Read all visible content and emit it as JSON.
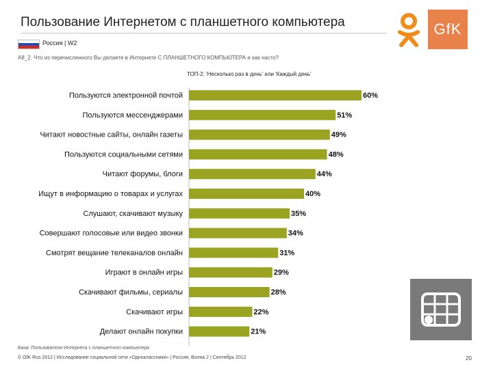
{
  "header": {
    "title": "Пользование Интернетом с планшетного компьютера",
    "country": "Россия | W2",
    "question": "A8_2. Что из перечисленного Вы делаете в Интернете С ПЛАНШЕТНОГО КОМПЬЮТЕРА и как часто?",
    "logo_text": "GfK"
  },
  "chart_data": {
    "type": "bar",
    "orientation": "horizontal",
    "title": "ТОП-2: 'Несколько раз в день' или 'Каждый день'",
    "categories": [
      "Пользуются электронной почтой",
      "Пользуются мессенджерами",
      "Читают новостные сайты, онлайн газеты",
      "Пользуются социальными сетями",
      "Читают форумы, блоги",
      "Ищут в информацию о товарах и услугах",
      "Слушают, скачивают музыку",
      "Совершают голосовые или видео звонки",
      "Смотрят вещание телеканалов онлайн",
      "Играют в онлайн игры",
      "Скачивают фильмы, сериалы",
      "Скачивают игры",
      "Делают онлайн покупки"
    ],
    "values": [
      60,
      51,
      49,
      48,
      44,
      40,
      35,
      34,
      31,
      29,
      28,
      22,
      21
    ],
    "value_labels": [
      "60%",
      "51%",
      "49%",
      "48%",
      "44%",
      "40%",
      "35%",
      "34%",
      "31%",
      "29%",
      "28%",
      "22%",
      "21%"
    ],
    "xlim": [
      0,
      60
    ],
    "bar_color": "#9aa421"
  },
  "footer": {
    "base": "База: Пользователи Интернета с планшетного компьютера",
    "copyright": "© GfK Rus 2012 | Исследование социальной сети «Одноклассники» | Россия, Волна 2 | Сентябрь 2012",
    "page_number": "20"
  }
}
